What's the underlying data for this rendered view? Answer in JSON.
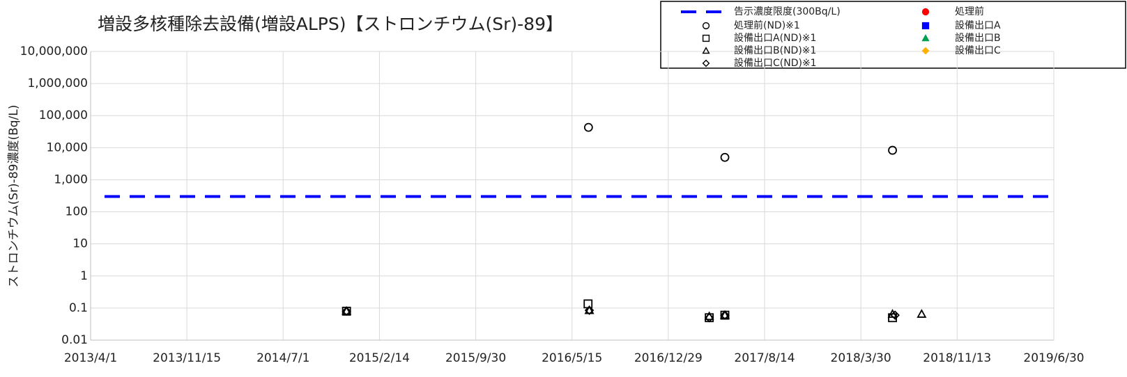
{
  "chart_data": {
    "type": "scatter",
    "title": "増設多核種除去設備(増設ALPS)【ストロンチウム(Sr)-89】",
    "y_label": "ストロンチウム(Sr)-89濃度(Bq/L)",
    "log_y": true,
    "grid": true,
    "legend": "top-right",
    "xlim": [
      "2013/4/1",
      "2019/6/30"
    ],
    "xticks": [
      "2013/4/1",
      "2013/11/15",
      "2014/7/1",
      "2015/2/14",
      "2015/9/30",
      "2016/5/15",
      "2016/12/29",
      "2017/8/14",
      "2018/3/30",
      "2018/11/13",
      "2019/6/30"
    ],
    "ylim": [
      0.01,
      10000000
    ],
    "yticks": [
      0.01,
      0.1,
      1,
      10,
      100,
      {
        "value": 1000,
        "label": "1,000"
      },
      {
        "value": 10000,
        "label": "10,000"
      },
      {
        "value": 100000,
        "label": "100,000"
      },
      {
        "value": 1000000,
        "label": "1,000,000"
      },
      {
        "value": 10000000,
        "label": "10,000,000"
      }
    ],
    "reference_lines": [
      {
        "name": "告示濃度限度(300Bq/L)",
        "value": 300,
        "color": "#0000ff"
      }
    ],
    "series": [
      {
        "name": "処理前(ND)※1",
        "marker": "circle",
        "filled": false,
        "color": "#000000",
        "x": [
          "2016/6/23",
          "2017/5/12",
          "2018/6/13"
        ],
        "values": [
          43000,
          5000,
          8300
        ]
      },
      {
        "name": "設備出口A(ND)※1",
        "marker": "square",
        "filled": false,
        "color": "#000000",
        "x": [
          "2014/11/28",
          "2016/6/22",
          "2017/4/5",
          "2017/5/12",
          "2018/6/13"
        ],
        "values": [
          0.08,
          0.135,
          0.05,
          0.06,
          0.05
        ]
      },
      {
        "name": "設備出口B(ND)※1",
        "marker": "triangle",
        "filled": false,
        "color": "#000000",
        "x": [
          "2014/11/28",
          "2016/6/25",
          "2017/4/5",
          "2017/5/12",
          "2018/6/13",
          "2018/8/21"
        ],
        "values": [
          0.08,
          0.085,
          0.055,
          0.06,
          0.065,
          0.065
        ]
      },
      {
        "name": "設備出口C(ND)※1",
        "marker": "diamond",
        "filled": false,
        "color": "#000000",
        "x": [
          "2014/11/28",
          "2016/6/25",
          "2017/4/5",
          "2017/5/12",
          "2018/6/19"
        ],
        "values": [
          0.08,
          0.085,
          0.05,
          0.06,
          0.06
        ]
      },
      {
        "name": "処理前",
        "marker": "circle",
        "filled": true,
        "color": "#ff0000",
        "x": [],
        "values": []
      },
      {
        "name": "設備出口A",
        "marker": "square",
        "filled": true,
        "color": "#0000ff",
        "x": [],
        "values": []
      },
      {
        "name": "設備出口B",
        "marker": "triangle",
        "filled": true,
        "color": "#00a050",
        "x": [],
        "values": []
      },
      {
        "name": "設備出口C",
        "marker": "diamond",
        "filled": true,
        "color": "#ffb000",
        "x": [],
        "values": []
      }
    ]
  }
}
